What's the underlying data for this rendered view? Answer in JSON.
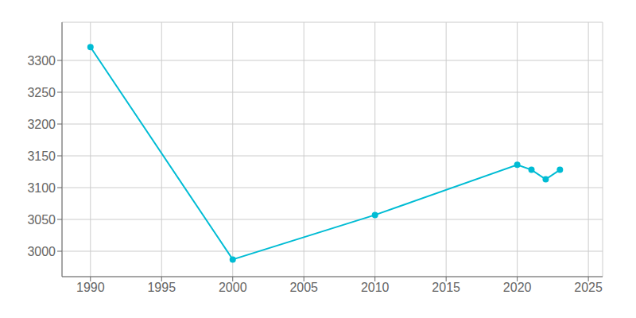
{
  "chart_data": {
    "type": "line",
    "x": [
      1990,
      2000,
      2010,
      2020,
      2021,
      2022,
      2023
    ],
    "values": [
      3321,
      2987,
      3057,
      3136,
      3128,
      3113,
      3128
    ],
    "color": "#00bcd4",
    "marker": "circle",
    "xlim": [
      1988,
      2026
    ],
    "xticks": [
      1990,
      1995,
      2000,
      2005,
      2010,
      2015,
      2020,
      2025
    ],
    "ylim": [
      2960,
      3360
    ],
    "yticks": [
      3000,
      3050,
      3100,
      3150,
      3200,
      3250,
      3300
    ],
    "grid": true
  }
}
